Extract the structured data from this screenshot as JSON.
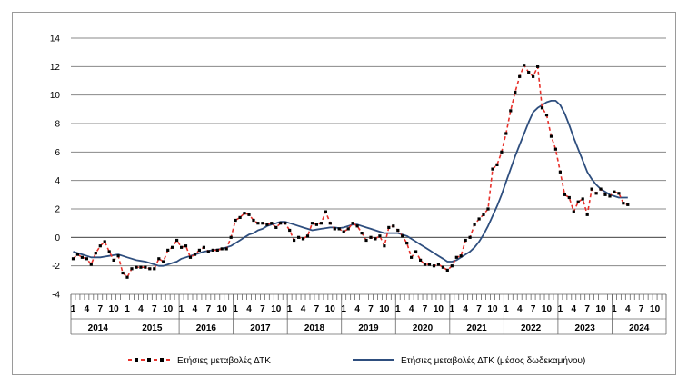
{
  "chart_data": {
    "type": "line",
    "title": "",
    "xlabel": "",
    "ylabel": "",
    "ylim": [
      -4,
      14
    ],
    "yticks": [
      -4,
      -2,
      0,
      2,
      4,
      6,
      8,
      10,
      12,
      14
    ],
    "grid": true,
    "legend_position": "bottom",
    "x_start": "2014-01",
    "month_tick_labels": [
      "1",
      "4",
      "7",
      "10"
    ],
    "years": [
      "2014",
      "2015",
      "2016",
      "2017",
      "2018",
      "2019",
      "2020",
      "2021",
      "2022",
      "2023",
      "2024"
    ],
    "series": [
      {
        "name": "Ετήσιες μεταβολές ΔΤΚ",
        "color": "#e8312b",
        "marker_color": "#000000",
        "style": "dashed-markers",
        "values": [
          -1.5,
          -1.2,
          -1.4,
          -1.5,
          -1.9,
          -1.1,
          -0.6,
          -0.3,
          -1.0,
          -1.6,
          -1.3,
          -2.5,
          -2.8,
          -2.2,
          -2.1,
          -2.1,
          -2.1,
          -2.2,
          -2.2,
          -1.5,
          -1.7,
          -0.9,
          -0.7,
          -0.2,
          -0.7,
          -0.6,
          -1.4,
          -1.2,
          -0.9,
          -0.7,
          -1.0,
          -0.9,
          -0.9,
          -0.8,
          -0.8,
          0.0,
          1.2,
          1.4,
          1.7,
          1.6,
          1.2,
          1.0,
          1.0,
          0.9,
          1.0,
          0.7,
          1.0,
          1.0,
          0.5,
          -0.2,
          0.0,
          -0.1,
          0.1,
          1.0,
          0.9,
          1.0,
          1.8,
          1.0,
          0.6,
          0.6,
          0.4,
          0.6,
          1.0,
          0.8,
          0.3,
          -0.2,
          0.0,
          -0.1,
          0.1,
          -0.6,
          0.7,
          0.8,
          0.5,
          0.1,
          -0.4,
          -1.4,
          -1.0,
          -1.6,
          -1.9,
          -1.9,
          -2.0,
          -1.9,
          -2.1,
          -2.3,
          -2.0,
          -1.4,
          -1.3,
          -0.2,
          0.0,
          0.9,
          1.3,
          1.6,
          2.0,
          4.8,
          5.1,
          6.0,
          7.3,
          8.9,
          10.2,
          11.3,
          12.1,
          11.6,
          11.3,
          12.0,
          9.1,
          8.6,
          7.1,
          6.2,
          4.6,
          3.0,
          2.8,
          1.8,
          2.5,
          2.7,
          1.6,
          3.4,
          3.1,
          3.4,
          3.0,
          2.9,
          3.2,
          3.1,
          2.4,
          2.3
        ]
      },
      {
        "name": "Ετήσιες μεταβολές ΔΤΚ (μέσος δωδεκαμήνου)",
        "color": "#2e4e7e",
        "style": "solid",
        "values": [
          -1.0,
          -1.1,
          -1.2,
          -1.3,
          -1.4,
          -1.4,
          -1.4,
          -1.35,
          -1.3,
          -1.25,
          -1.2,
          -1.3,
          -1.4,
          -1.5,
          -1.6,
          -1.65,
          -1.7,
          -1.8,
          -1.9,
          -2.0,
          -2.0,
          -1.9,
          -1.8,
          -1.7,
          -1.5,
          -1.4,
          -1.3,
          -1.2,
          -1.1,
          -1.0,
          -0.95,
          -0.9,
          -0.85,
          -0.8,
          -0.7,
          -0.6,
          -0.4,
          -0.2,
          0.0,
          0.2,
          0.3,
          0.5,
          0.6,
          0.8,
          0.9,
          1.0,
          1.1,
          1.1,
          1.0,
          0.9,
          0.8,
          0.7,
          0.6,
          0.5,
          0.55,
          0.6,
          0.65,
          0.7,
          0.7,
          0.65,
          0.7,
          0.8,
          0.9,
          0.9,
          0.8,
          0.7,
          0.6,
          0.5,
          0.4,
          0.3,
          0.3,
          0.3,
          0.3,
          0.2,
          0.1,
          -0.1,
          -0.3,
          -0.5,
          -0.7,
          -0.9,
          -1.1,
          -1.3,
          -1.5,
          -1.7,
          -1.7,
          -1.6,
          -1.4,
          -1.2,
          -1.0,
          -0.7,
          -0.3,
          0.2,
          0.8,
          1.5,
          2.2,
          3.0,
          3.9,
          4.8,
          5.7,
          6.5,
          7.3,
          8.1,
          8.8,
          9.1,
          9.3,
          9.5,
          9.6,
          9.6,
          9.3,
          8.7,
          7.9,
          7.0,
          6.2,
          5.4,
          4.6,
          4.1,
          3.7,
          3.4,
          3.2,
          3.0,
          2.9,
          2.8,
          2.8,
          2.8
        ]
      }
    ]
  }
}
